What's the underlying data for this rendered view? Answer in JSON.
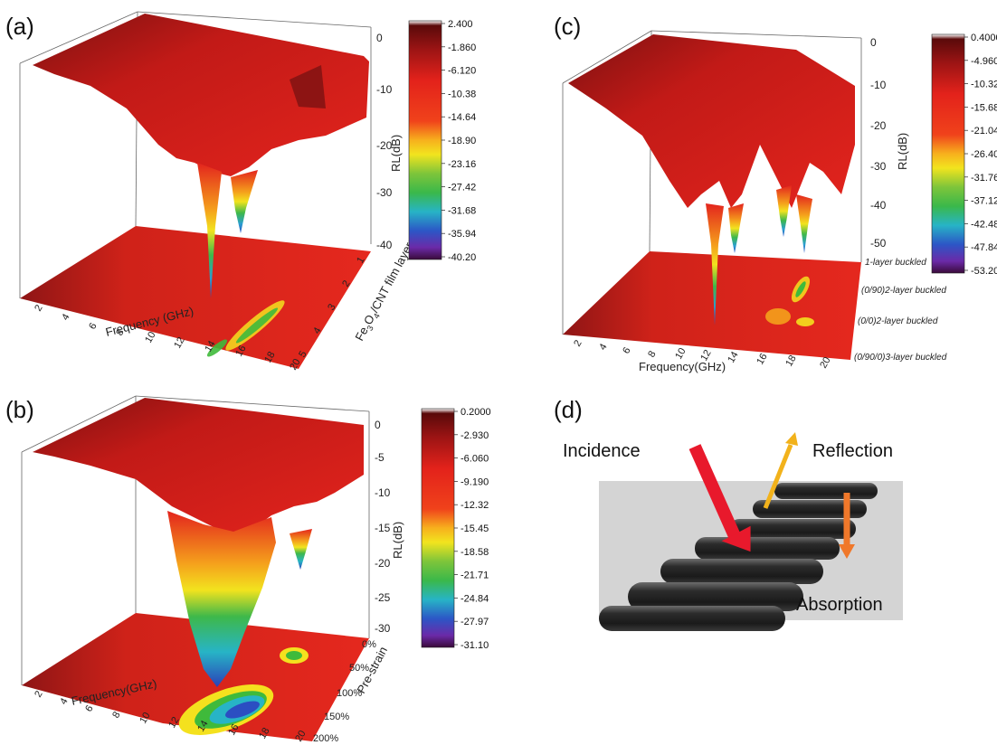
{
  "chart_data": [
    {
      "panel": "(a)",
      "type": "surface3d",
      "xlabel": "Frequency (GHz)",
      "ylabel": "Fe3O4/CNT film layers",
      "ylabel_parts": [
        "Fe",
        "3",
        "O",
        "4",
        "/CNT film layers"
      ],
      "zlabel": "RL(dB)",
      "x_ticks": [
        "2",
        "4",
        "6",
        "8",
        "10",
        "12",
        "14",
        "16",
        "18",
        "20"
      ],
      "y_ticks": [
        "1",
        "2",
        "3",
        "4",
        "5"
      ],
      "z_ticks": [
        "0",
        "-10",
        "-20",
        "-30",
        "-40"
      ],
      "xlim": [
        2,
        20
      ],
      "zlim": [
        -42,
        2
      ],
      "colorbar_ticks": [
        "2.400",
        "-1.860",
        "-6.120",
        "-10.38",
        "-14.64",
        "-18.90",
        "-23.16",
        "-27.42",
        "-31.68",
        "-35.94",
        "-40.20"
      ],
      "frequency_ghz": [
        2,
        4,
        6,
        8,
        10,
        12,
        13,
        14,
        15,
        16,
        17,
        18,
        20
      ],
      "rl_db_min_series": [
        -2,
        -3,
        -4,
        -6,
        -8,
        -12,
        -18,
        -40,
        -18,
        -32,
        -20,
        -10,
        -3
      ]
    },
    {
      "panel": "(b)",
      "type": "surface3d",
      "xlabel": "Frequency(GHz)",
      "ylabel": "Pre-strain",
      "zlabel": "RL(dB)",
      "x_ticks": [
        "2",
        "4",
        "6",
        "8",
        "10",
        "12",
        "14",
        "16",
        "18",
        "20"
      ],
      "y_ticks": [
        "0%",
        "50%",
        "100%",
        "150%",
        "200%"
      ],
      "z_ticks": [
        "0",
        "-5",
        "-10",
        "-15",
        "-20",
        "-25",
        "-30"
      ],
      "xlim": [
        2,
        20
      ],
      "zlim": [
        -31,
        1
      ],
      "colorbar_ticks": [
        "0.2000",
        "-2.930",
        "-6.060",
        "-9.190",
        "-12.32",
        "-15.45",
        "-18.58",
        "-21.71",
        "-24.84",
        "-27.97",
        "-31.10"
      ],
      "frequency_ghz": [
        2,
        4,
        6,
        8,
        10,
        12,
        13,
        14,
        15,
        16,
        17,
        18,
        20
      ],
      "rl_db_min_series": [
        -2,
        -3,
        -4,
        -6,
        -9,
        -14,
        -20,
        -30,
        -31,
        -22,
        -18,
        -10,
        -3
      ]
    },
    {
      "panel": "(c)",
      "type": "surface3d",
      "xlabel": "Frequency(GHz)",
      "zlabel": "RL(dB)",
      "x_ticks": [
        "2",
        "4",
        "6",
        "8",
        "10",
        "12",
        "14",
        "16",
        "18",
        "20"
      ],
      "y_ticks": [
        "1-layer buckled",
        "(0/90)2-layer buckled",
        "(0/0)2-layer buckled",
        "(0/90/0)3-layer buckled"
      ],
      "z_ticks": [
        "0",
        "-10",
        "-20",
        "-30",
        "-40",
        "-50"
      ],
      "xlim": [
        2,
        20
      ],
      "zlim": [
        -53,
        2
      ],
      "colorbar_ticks": [
        "0.4000",
        "-4.960",
        "-10.32",
        "-15.68",
        "-21.04",
        "-26.40",
        "-31.76",
        "-37.12",
        "-42.48",
        "-47.84",
        "-53.20"
      ],
      "frequency_ghz": [
        2,
        4,
        6,
        8,
        10,
        11,
        12,
        13,
        14,
        15,
        16,
        17,
        18,
        20
      ],
      "rl_db_min_series": [
        -2,
        -4,
        -8,
        -14,
        -25,
        -50,
        -22,
        -40,
        -14,
        -12,
        -30,
        -50,
        -16,
        -4
      ]
    }
  ],
  "labels": {
    "a": "(a)",
    "b": "(b)",
    "c": "(c)",
    "d": "(d)"
  },
  "scheme": {
    "incidence": "Incidence",
    "reflection": "Reflection",
    "absorption": "Absorption"
  },
  "colors": {
    "surface_red": "#e4211c",
    "surface_dark": "#7a1010",
    "floor_red": "#d9261c",
    "dip_yellow": "#f4e11e",
    "dip_green": "#3fba3b",
    "dip_blue": "#2b57c7",
    "dip_purple": "#7b1fa2",
    "arrow_red": "#e8192c",
    "arrow_yellow": "#f2b21b",
    "arrow_orange": "#f0782a"
  }
}
